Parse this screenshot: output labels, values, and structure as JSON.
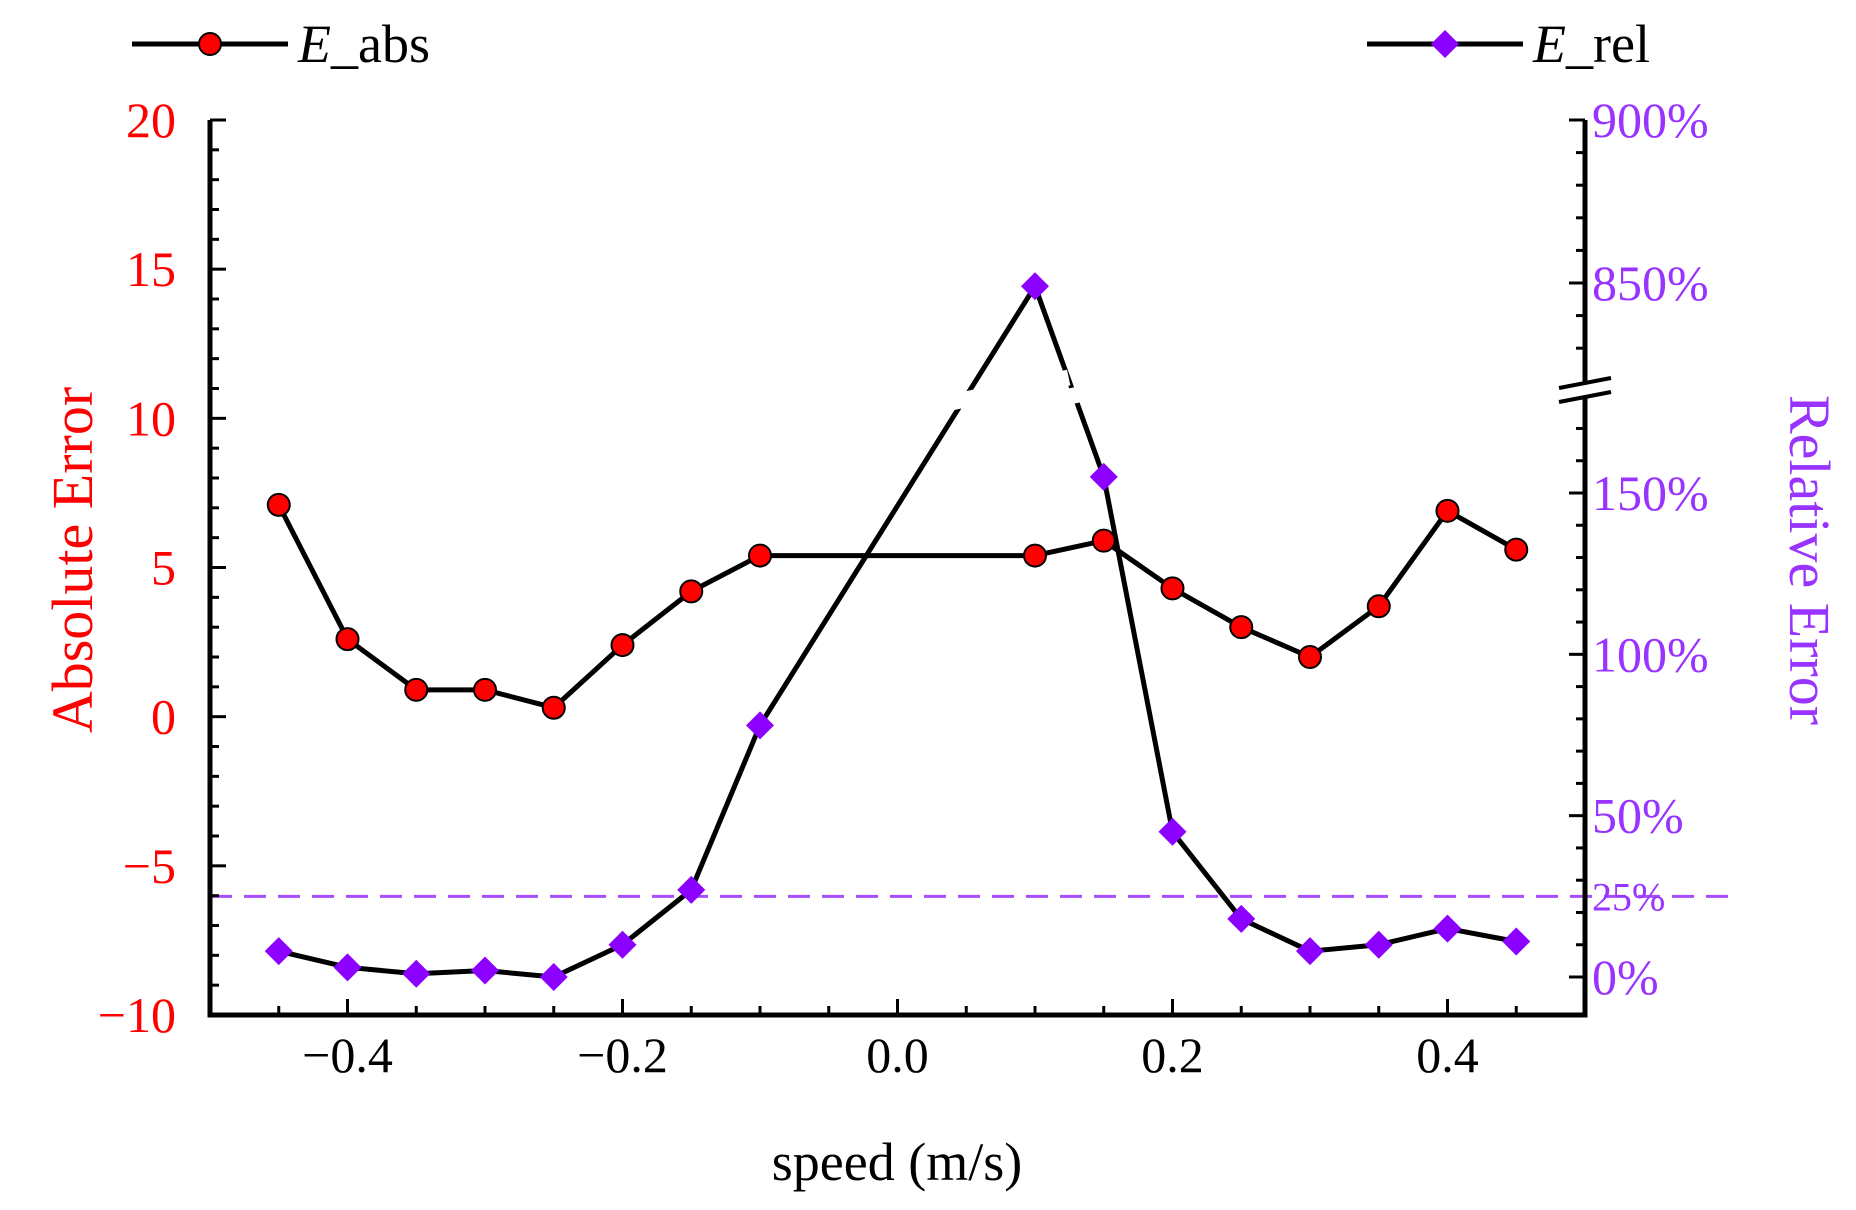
{
  "chart_data": {
    "type": "line",
    "title": "",
    "xlabel": "speed (m/s)",
    "ylabel_left": "Absolute Error",
    "ylabel_right": "Relative Error",
    "xlim": [
      -0.5,
      0.5
    ],
    "ylim_left": [
      -10,
      20
    ],
    "x_ticks": [
      "−0.4",
      "−0.2",
      "0.0",
      "0.2",
      "0.4"
    ],
    "x_tick_values": [
      -0.4,
      -0.2,
      0.0,
      0.2,
      0.4
    ],
    "y_ticks_left": [
      "−10",
      "−5",
      "0",
      "5",
      "10",
      "15",
      "20"
    ],
    "y_tick_values_left": [
      -10,
      -5,
      0,
      5,
      10,
      15,
      20
    ],
    "y_ticks_right": [
      "0%",
      "25%",
      "50%",
      "100%",
      "150%",
      "850%",
      "900%"
    ],
    "y_tick_values_right": [
      0,
      25,
      50,
      100,
      150,
      850,
      900
    ],
    "right_axis_break": {
      "lower_range": [
        0,
        175
      ],
      "upper_range": [
        820,
        900
      ]
    },
    "reference_line": {
      "axis": "right",
      "value": 25,
      "style": "dashed",
      "color": "#a64dff"
    },
    "x": [
      -0.45,
      -0.4,
      -0.35,
      -0.3,
      -0.25,
      -0.2,
      -0.15,
      -0.1,
      0.1,
      0.15,
      0.2,
      0.25,
      0.3,
      0.35,
      0.4,
      0.45
    ],
    "series": [
      {
        "name": "E_abs",
        "legend_italic": "E",
        "legend_rest": "_abs",
        "axis": "left",
        "marker": "circle",
        "marker_color": "#ff0000",
        "line_color": "#000000",
        "values": [
          7.1,
          2.6,
          0.9,
          0.9,
          0.3,
          2.4,
          4.2,
          5.4,
          5.4,
          5.9,
          4.3,
          3.0,
          2.0,
          3.7,
          6.9,
          5.6
        ]
      },
      {
        "name": "E_rel",
        "legend_italic": "E",
        "legend_rest": "_rel",
        "axis": "right",
        "marker": "diamond",
        "marker_color": "#8b00ff",
        "line_color": "#000000",
        "values": [
          8,
          3,
          1,
          2,
          0,
          10,
          27,
          78,
          849,
          155,
          45,
          18,
          8,
          10,
          15,
          11
        ]
      }
    ],
    "colors": {
      "left_axis": "#ff0000",
      "right_axis": "#9933ff",
      "axes": "#000000"
    },
    "legend_placement": "top"
  }
}
